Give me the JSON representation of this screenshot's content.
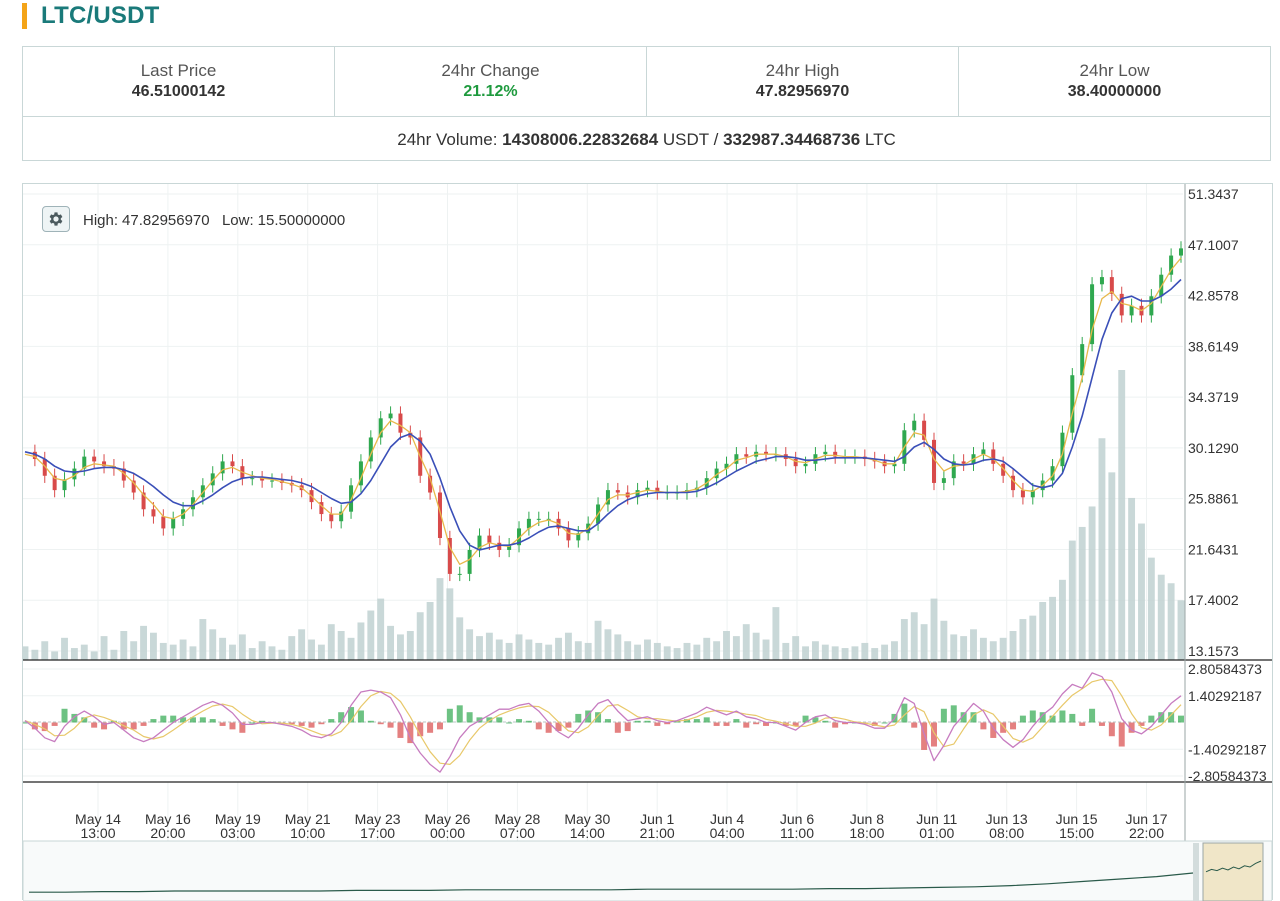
{
  "pair": {
    "title": "LTC/USDT"
  },
  "stats": {
    "last_price_label": "Last Price",
    "last_price": "46.51000142",
    "change_label": "24hr Change",
    "change": "21.12%",
    "high_label": "24hr High",
    "high": "47.82956970",
    "low_label": "24hr Low",
    "low": "38.40000000",
    "volume_label": "24hr Volume:",
    "volume_usdt": "14308006.22832684",
    "volume_usdt_unit": "USDT /",
    "volume_ltc": "332987.34468736",
    "volume_ltc_unit": "LTC"
  },
  "chart": {
    "readout_high_label": "High:",
    "readout_high": "47.82956970",
    "readout_low_label": "Low:",
    "readout_low": "15.50000000",
    "settings_icon": "gear-icon",
    "colors": {
      "up": "#2fa84f",
      "down": "#d84a4a",
      "ma_fast": "#e8b84a",
      "ma_slow": "#3a4fb8",
      "volume": "#bfd1d1",
      "macd_line": "#c77cc0",
      "macd_signal": "#e8c86a",
      "grid": "#eef2f2",
      "axis": "#222222",
      "overview_line": "#2a5a4a",
      "overview_window": "#f0e6c8"
    }
  },
  "chart_data": {
    "type": "line",
    "price_axis": [
      "51.3437",
      "47.1007",
      "42.8578",
      "38.6149",
      "34.3719",
      "30.1290",
      "25.8861",
      "21.6431",
      "17.4002",
      "13.1573"
    ],
    "price_range": [
      13.1573,
      51.3437
    ],
    "macd_axis": [
      "2.80584373",
      "1.40292187",
      "-1.40292187",
      "-2.80584373"
    ],
    "macd_range": [
      -2.80584373,
      2.80584373
    ],
    "time_axis": [
      {
        "date": "May 14",
        "time": "13:00"
      },
      {
        "date": "May 16",
        "time": "20:00"
      },
      {
        "date": "May 19",
        "time": "03:00"
      },
      {
        "date": "May 21",
        "time": "10:00"
      },
      {
        "date": "May 23",
        "time": "17:00"
      },
      {
        "date": "May 26",
        "time": "00:00"
      },
      {
        "date": "May 28",
        "time": "07:00"
      },
      {
        "date": "May 30",
        "time": "14:00"
      },
      {
        "date": "Jun 1",
        "time": "21:00"
      },
      {
        "date": "Jun 4",
        "time": "04:00"
      },
      {
        "date": "Jun 6",
        "time": "11:00"
      },
      {
        "date": "Jun 8",
        "time": "18:00"
      },
      {
        "date": "Jun 11",
        "time": "01:00"
      },
      {
        "date": "Jun 13",
        "time": "08:00"
      },
      {
        "date": "Jun 15",
        "time": "15:00"
      },
      {
        "date": "Jun 17",
        "time": "22:00"
      }
    ],
    "price_series": [
      29.8,
      29.2,
      27.8,
      26.6,
      27.5,
      28.4,
      29.4,
      29.0,
      28.6,
      28.4,
      27.4,
      26.4,
      25.0,
      24.4,
      23.4,
      24.2,
      25.0,
      26.0,
      27.0,
      28.0,
      29.0,
      28.6,
      27.6,
      27.6,
      27.4,
      27.4,
      27.2,
      27.0,
      26.6,
      25.6,
      24.6,
      24.0,
      24.8,
      27.0,
      29.0,
      31.0,
      32.6,
      33.0,
      31.4,
      31.0,
      27.8,
      26.4,
      22.6,
      19.6,
      19.6,
      21.6,
      22.8,
      22.2,
      21.6,
      22.0,
      23.4,
      24.2,
      24.2,
      24.2,
      23.4,
      22.4,
      23.0,
      23.8,
      25.4,
      26.6,
      26.4,
      26.0,
      26.6,
      26.8,
      26.4,
      26.4,
      26.4,
      26.6,
      26.8,
      27.6,
      28.4,
      28.8,
      29.6,
      29.4,
      29.8,
      29.6,
      29.6,
      29.2,
      28.6,
      28.8,
      29.6,
      29.8,
      29.4,
      29.4,
      29.4,
      29.2,
      29.0,
      28.6,
      28.8,
      31.6,
      32.4,
      30.8,
      27.2,
      27.6,
      29.0,
      28.8,
      29.6,
      30.0,
      28.8,
      27.8,
      26.6,
      26.0,
      26.6,
      27.4,
      28.6,
      31.4,
      36.2,
      38.8,
      43.8,
      44.4,
      43.0,
      41.2,
      42.0,
      41.2,
      42.8,
      44.6,
      46.2,
      46.8
    ],
    "ma_fast_series": [
      29.6,
      29.4,
      28.6,
      27.6,
      27.4,
      27.8,
      28.5,
      28.8,
      28.7,
      28.6,
      28.0,
      27.2,
      26.2,
      25.4,
      24.4,
      24.2,
      24.6,
      25.4,
      26.4,
      27.4,
      28.3,
      28.5,
      28.1,
      27.8,
      27.6,
      27.5,
      27.3,
      27.1,
      26.8,
      26.1,
      25.3,
      24.6,
      24.6,
      25.8,
      27.6,
      29.6,
      31.4,
      32.4,
      32.0,
      31.4,
      29.4,
      27.6,
      24.8,
      21.8,
      20.4,
      20.8,
      21.8,
      22.2,
      22.0,
      21.9,
      22.6,
      23.4,
      23.9,
      24.1,
      23.8,
      23.0,
      22.9,
      23.4,
      24.6,
      25.8,
      26.2,
      26.2,
      26.4,
      26.6,
      26.5,
      26.4,
      26.4,
      26.5,
      26.7,
      27.2,
      27.9,
      28.4,
      29.1,
      29.3,
      29.6,
      29.6,
      29.6,
      29.4,
      29.0,
      28.9,
      29.2,
      29.5,
      29.5,
      29.4,
      29.4,
      29.3,
      29.1,
      28.8,
      28.8,
      30.2,
      31.4,
      31.2,
      29.2,
      28.2,
      28.6,
      28.7,
      29.2,
      29.6,
      29.2,
      28.4,
      27.4,
      26.6,
      26.5,
      27.0,
      27.8,
      29.6,
      33.0,
      36.0,
      40.0,
      42.6,
      43.2,
      42.2,
      42.0,
      41.6,
      42.2,
      43.6,
      45.0,
      46.0
    ],
    "ma_slow_series": [
      29.8,
      29.6,
      29.2,
      28.6,
      28.2,
      28.1,
      28.2,
      28.4,
      28.5,
      28.5,
      28.3,
      28.0,
      27.5,
      26.9,
      26.2,
      25.6,
      25.3,
      25.3,
      25.7,
      26.2,
      26.8,
      27.3,
      27.6,
      27.7,
      27.7,
      27.6,
      27.5,
      27.4,
      27.2,
      26.9,
      26.4,
      25.9,
      25.5,
      25.6,
      26.3,
      27.4,
      28.8,
      30.2,
      31.0,
      31.3,
      30.7,
      29.6,
      27.6,
      25.2,
      23.2,
      22.0,
      21.6,
      21.8,
      22.0,
      22.0,
      22.2,
      22.6,
      23.1,
      23.5,
      23.6,
      23.4,
      23.2,
      23.2,
      23.8,
      24.6,
      25.3,
      25.8,
      26.1,
      26.3,
      26.4,
      26.4,
      26.4,
      26.4,
      26.5,
      26.8,
      27.2,
      27.7,
      28.2,
      28.6,
      29.0,
      29.2,
      29.4,
      29.4,
      29.3,
      29.1,
      29.1,
      29.2,
      29.3,
      29.3,
      29.3,
      29.3,
      29.2,
      29.1,
      29.0,
      29.4,
      30.2,
      30.6,
      30.0,
      29.2,
      28.8,
      28.7,
      28.8,
      29.1,
      29.2,
      29.0,
      28.4,
      27.7,
      27.0,
      26.8,
      27.0,
      28.0,
      30.2,
      32.8,
      36.0,
      39.2,
      41.4,
      42.6,
      42.8,
      42.4,
      42.4,
      42.8,
      43.4,
      44.2
    ],
    "volume_series": [
      1.6,
      1.2,
      2.2,
      1.0,
      2.6,
      1.4,
      1.8,
      1.0,
      2.8,
      1.2,
      3.4,
      2.2,
      4.0,
      3.2,
      2.0,
      1.8,
      2.4,
      1.6,
      4.8,
      3.6,
      2.6,
      1.8,
      3.0,
      1.4,
      2.2,
      1.6,
      1.2,
      2.8,
      3.6,
      2.4,
      1.8,
      4.2,
      3.4,
      2.6,
      4.4,
      5.8,
      7.2,
      4.0,
      3.0,
      3.4,
      5.6,
      6.8,
      9.6,
      8.4,
      5.0,
      3.6,
      2.8,
      3.2,
      2.4,
      2.0,
      3.0,
      2.4,
      2.0,
      1.8,
      2.6,
      3.2,
      2.2,
      2.0,
      4.6,
      3.6,
      3.0,
      2.2,
      1.8,
      2.4,
      2.0,
      1.6,
      1.4,
      2.0,
      1.8,
      2.6,
      2.2,
      3.4,
      2.8,
      4.2,
      3.2,
      2.4,
      6.2,
      2.0,
      2.8,
      1.6,
      2.2,
      1.8,
      1.6,
      1.4,
      1.6,
      2.0,
      1.4,
      1.8,
      2.2,
      4.8,
      5.6,
      4.2,
      7.2,
      4.6,
      3.0,
      2.8,
      3.6,
      2.6,
      2.2,
      2.6,
      3.4,
      4.8,
      5.2,
      6.8,
      7.4,
      9.4,
      14.0,
      15.6,
      18.0,
      26.0,
      22.0,
      34.0,
      19.0,
      16.0,
      12.0,
      10.0,
      9.0,
      7.0
    ],
    "macd_series": [
      0.1,
      -0.3,
      -0.8,
      -1.0,
      -0.2,
      0.3,
      0.6,
      0.3,
      -0.1,
      0.0,
      -0.4,
      -0.8,
      -1.0,
      -0.8,
      -0.4,
      0.0,
      0.3,
      0.6,
      0.9,
      1.1,
      0.9,
      0.5,
      -0.1,
      -0.1,
      0.0,
      0.0,
      -0.1,
      -0.2,
      -0.4,
      -0.7,
      -0.8,
      -0.6,
      0.0,
      0.9,
      1.6,
      1.7,
      1.6,
      1.3,
      0.4,
      -0.8,
      -1.6,
      -2.2,
      -2.6,
      -1.8,
      -0.8,
      -0.2,
      0.1,
      0.4,
      0.7,
      0.7,
      0.9,
      1.0,
      0.6,
      0.0,
      -0.5,
      -0.8,
      -0.3,
      0.4,
      1.0,
      1.2,
      0.6,
      0.1,
      0.2,
      0.3,
      0.1,
      0.0,
      0.1,
      0.3,
      0.5,
      0.8,
      0.6,
      0.4,
      0.6,
      0.3,
      0.2,
      0.0,
      0.0,
      -0.2,
      -0.4,
      0.0,
      0.3,
      0.4,
      0.1,
      0.0,
      0.0,
      -0.1,
      -0.3,
      -0.3,
      0.2,
      1.3,
      1.0,
      -0.6,
      -2.0,
      -1.2,
      -0.2,
      0.4,
      1.0,
      0.6,
      -0.3,
      -0.9,
      -1.3,
      -0.9,
      -0.2,
      0.4,
      0.8,
      1.5,
      2.0,
      1.8,
      2.6,
      2.4,
      1.6,
      0.2,
      -0.4,
      -0.6,
      -0.2,
      0.4,
      1.0,
      1.4
    ],
    "overview_series": [
      0.08,
      0.08,
      0.09,
      0.09,
      0.1,
      0.1,
      0.1,
      0.1,
      0.1,
      0.11,
      0.11,
      0.11,
      0.12,
      0.12,
      0.12,
      0.12,
      0.12,
      0.13,
      0.13,
      0.13,
      0.13,
      0.13,
      0.14,
      0.14,
      0.15,
      0.16,
      0.17,
      0.19,
      0.22,
      0.26,
      0.3,
      0.34,
      0.4
    ]
  }
}
